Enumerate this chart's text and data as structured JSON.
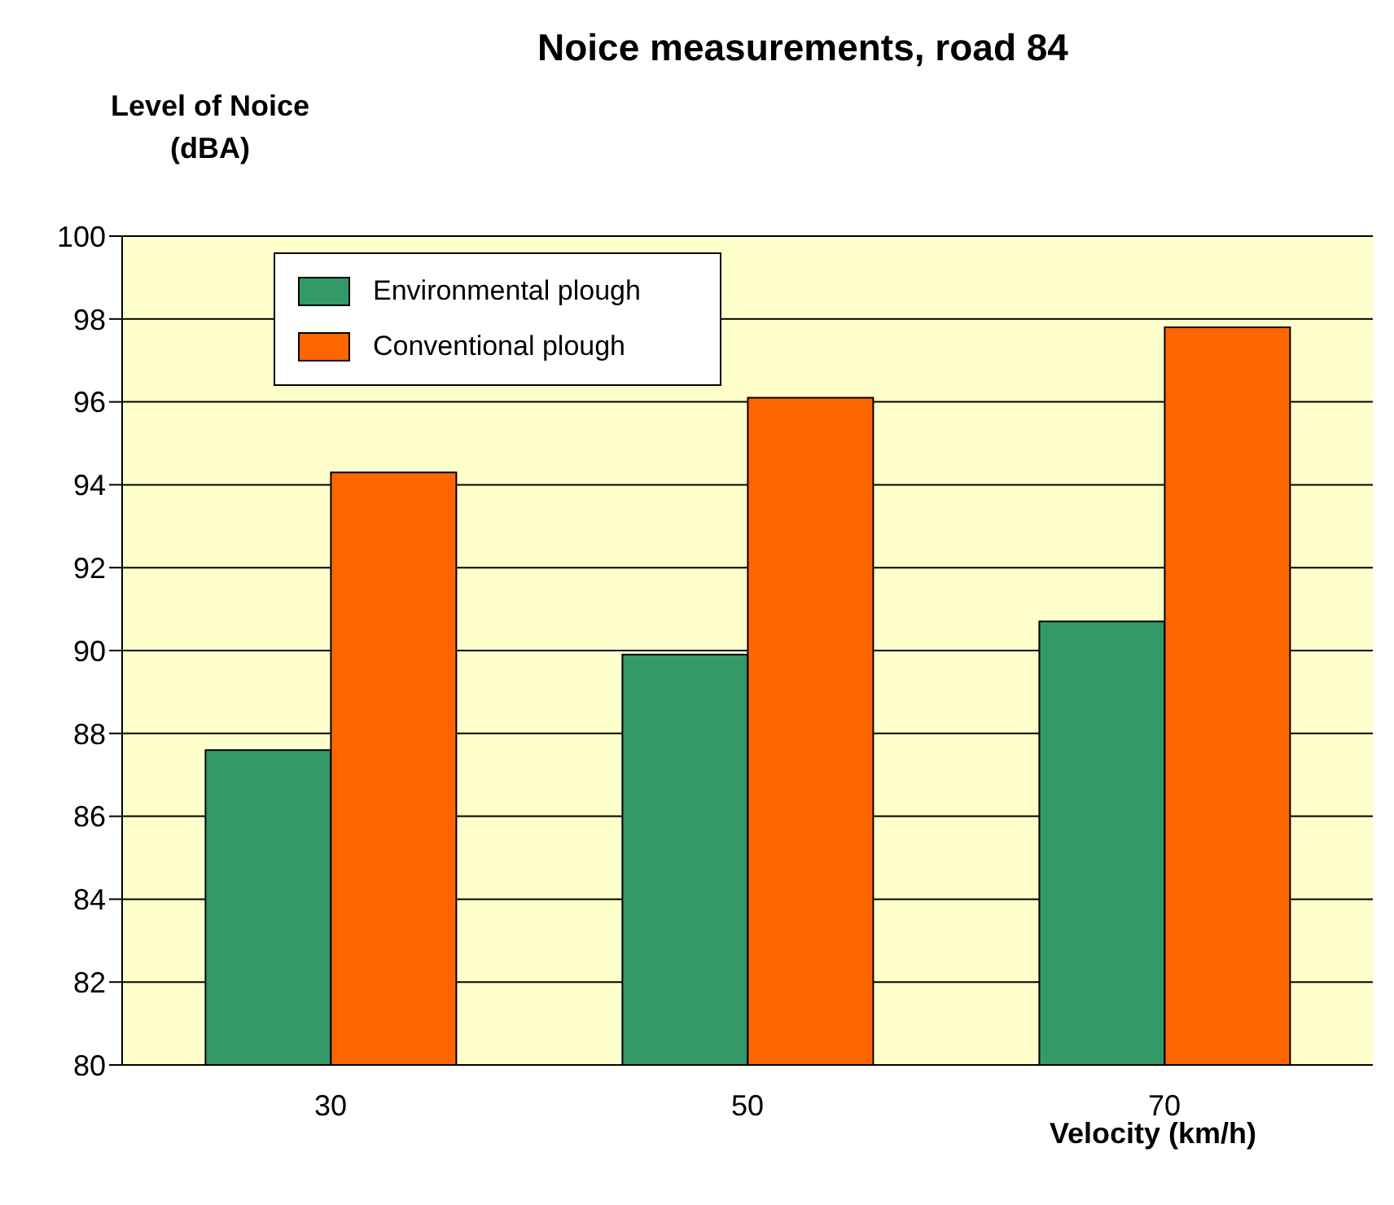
{
  "chart_data": {
    "type": "bar",
    "title": "Noice measurements, road 84",
    "ylabel": "Level of Noice\n(dBA)",
    "xlabel": "Velocity (km/h)",
    "categories": [
      "30",
      "50",
      "70"
    ],
    "series": [
      {
        "name": "Environmental plough",
        "color": "#339966",
        "values": [
          87.6,
          89.9,
          90.7
        ]
      },
      {
        "name": "Conventional plough",
        "color": "#ff6600",
        "values": [
          94.3,
          96.1,
          97.8
        ]
      }
    ],
    "ylim": [
      80,
      100
    ],
    "yticks": [
      80,
      82,
      84,
      86,
      88,
      90,
      92,
      94,
      96,
      98,
      100
    ],
    "grid": "y",
    "legend": "top left"
  }
}
